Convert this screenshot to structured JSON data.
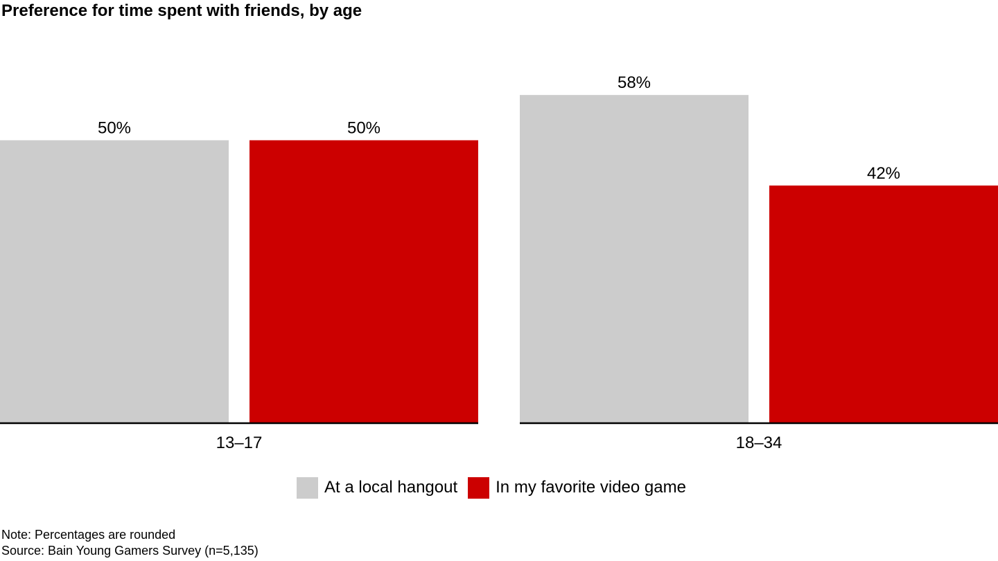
{
  "colors": {
    "series_1": "#cccccc",
    "series_2": "#cc0000",
    "axis": "#000000"
  },
  "chart_data": {
    "type": "bar",
    "title": "Preference for time spent with friends, by age",
    "categories": [
      "13–17",
      "18–34"
    ],
    "series": [
      {
        "name": "At a local hangout",
        "values": [
          50,
          58
        ],
        "labels": [
          "50%",
          "58%"
        ]
      },
      {
        "name": "In my favorite video game",
        "values": [
          50,
          42
        ],
        "labels": [
          "50%",
          "42%"
        ]
      }
    ],
    "ylim": [
      0,
      70
    ],
    "unit": "%",
    "grid": false,
    "legend_position": "bottom-center"
  },
  "footer": {
    "note": "Note: Percentages are rounded",
    "source": "Source: Bain Young Gamers Survey (n=5,135)"
  }
}
